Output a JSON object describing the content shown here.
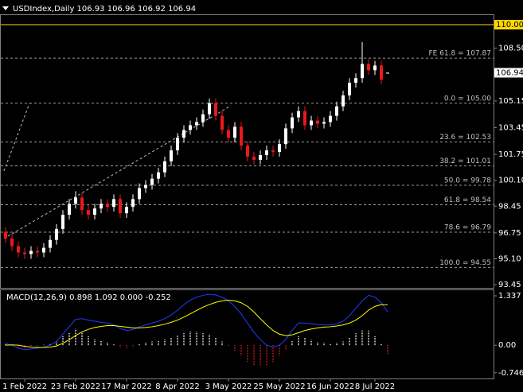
{
  "chart_data": [
    {
      "type": "candlestick",
      "title": "USDIndex,Daily  106.93 106.96 106.92 106.94",
      "categories": [
        null,
        null,
        null,
        "1 Feb 2022",
        null,
        null,
        null,
        null,
        null,
        null,
        null,
        "23 Feb 2022",
        null,
        null,
        null,
        null,
        null,
        null,
        null,
        "17 Mar 2022",
        null,
        null,
        null,
        null,
        null,
        null,
        null,
        "8 Apr 2022",
        null,
        null,
        null,
        null,
        null,
        null,
        null,
        "3 May 2022",
        null,
        null,
        null,
        null,
        null,
        null,
        null,
        "25 May 2022",
        null,
        null,
        null,
        null,
        null,
        null,
        null,
        "16 Jun 2022",
        null,
        null,
        null,
        null,
        null,
        null,
        "8 Jul 2022",
        null,
        null
      ],
      "open": [
        96.8,
        96.4,
        95.9,
        95.5,
        95.4,
        95.6,
        95.5,
        95.8,
        96.3,
        97.0,
        97.9,
        98.6,
        99.0,
        98.2,
        97.9,
        98.3,
        98.6,
        98.4,
        98.9,
        98.0,
        98.4,
        98.9,
        99.6,
        99.8,
        100.2,
        100.6,
        101.3,
        102.0,
        102.8,
        103.3,
        103.6,
        103.8,
        104.3,
        105.0,
        104.2,
        103.3,
        102.8,
        103.5,
        102.3,
        101.6,
        101.4,
        101.7,
        102.0,
        101.9,
        102.4,
        103.4,
        104.1,
        104.5,
        103.6,
        103.9,
        103.7,
        103.8,
        104.2,
        104.8,
        105.5,
        106.3,
        106.6,
        107.5,
        107.1,
        107.4,
        106.93
      ],
      "high": [
        97.1,
        96.7,
        96.2,
        95.8,
        95.9,
        95.9,
        96.1,
        96.6,
        97.3,
        98.2,
        98.9,
        99.4,
        99.3,
        98.5,
        98.6,
        98.9,
        98.9,
        99.2,
        99.2,
        98.7,
        99.2,
        99.9,
        100.1,
        100.5,
        100.9,
        101.6,
        102.3,
        103.1,
        103.6,
        103.9,
        104.1,
        104.6,
        105.3,
        105.3,
        104.5,
        103.6,
        103.8,
        103.8,
        102.6,
        101.9,
        102.0,
        102.3,
        102.3,
        102.7,
        103.7,
        104.4,
        104.8,
        104.8,
        104.2,
        104.2,
        104.1,
        104.5,
        105.1,
        105.8,
        106.6,
        106.9,
        108.9,
        107.8,
        107.7,
        107.7,
        106.96
      ],
      "low": [
        96.1,
        95.6,
        95.2,
        95.1,
        95.1,
        95.2,
        95.2,
        95.5,
        96.0,
        96.7,
        97.6,
        98.3,
        97.9,
        97.6,
        97.6,
        98.0,
        98.1,
        98.1,
        97.7,
        97.7,
        98.1,
        98.6,
        99.3,
        99.5,
        99.9,
        100.3,
        101.0,
        101.7,
        102.5,
        103.0,
        103.3,
        103.5,
        104.0,
        103.9,
        103.0,
        102.5,
        102.5,
        102.0,
        101.3,
        101.1,
        101.1,
        101.4,
        101.6,
        101.6,
        102.1,
        103.1,
        103.8,
        103.3,
        103.3,
        103.4,
        103.4,
        103.5,
        103.9,
        104.5,
        105.2,
        106.0,
        106.3,
        106.8,
        106.8,
        106.2,
        106.92
      ],
      "close": [
        96.4,
        95.9,
        95.5,
        95.4,
        95.6,
        95.5,
        95.8,
        96.3,
        97.0,
        97.9,
        98.6,
        99.0,
        98.2,
        97.9,
        98.3,
        98.6,
        98.4,
        98.9,
        98.0,
        98.4,
        98.9,
        99.6,
        99.8,
        100.2,
        100.6,
        101.3,
        102.0,
        102.8,
        103.3,
        103.6,
        103.8,
        104.3,
        105.0,
        104.2,
        103.3,
        102.8,
        103.5,
        102.3,
        101.6,
        101.4,
        101.7,
        102.0,
        101.9,
        102.4,
        103.4,
        104.1,
        104.5,
        103.6,
        103.9,
        103.7,
        103.8,
        104.2,
        104.8,
        105.5,
        106.3,
        106.6,
        107.5,
        107.1,
        107.4,
        106.5,
        106.94
      ],
      "up_color": "#ffffff",
      "down_color": "#e8191b",
      "ylim": [
        93.25,
        110.66
      ],
      "yticks": [
        {
          "value": 93.45,
          "label": "93.45"
        },
        {
          "value": 95.1,
          "label": "95.10"
        },
        {
          "value": 96.75,
          "label": "96.75"
        },
        {
          "value": 98.45,
          "label": "98.45"
        },
        {
          "value": 100.1,
          "label": "100.10"
        },
        {
          "value": 101.75,
          "label": "101.75"
        },
        {
          "value": 103.45,
          "label": "103.45"
        },
        {
          "value": 105.15,
          "label": "105.15"
        },
        {
          "value": 108.5,
          "label": "108.50"
        }
      ],
      "hline": {
        "value": 110,
        "label": "110.00",
        "color": "#ffd700"
      },
      "current_price": {
        "value": 106.94,
        "label": "106.94"
      },
      "levels": [
        {
          "value": 107.87,
          "label": "FE 61.8 = 107.87"
        },
        {
          "value": 105,
          "label": "0.0 = 105.00"
        },
        {
          "value": 102.53,
          "label": "23.6 = 102.53"
        },
        {
          "value": 101.01,
          "label": "38.2 = 101.01"
        },
        {
          "value": 99.78,
          "label": "50.0 = 99.78"
        },
        {
          "value": 98.54,
          "label": "61.8 = 98.54"
        },
        {
          "value": 96.79,
          "label": "78.6 = 96.79"
        },
        {
          "value": 94.55,
          "label": "100.0 = 94.55"
        }
      ],
      "grid": false
    },
    {
      "type": "macd",
      "title": "MACD(12,26,9) 0.898 1.092 0.000 -0.252",
      "histogram": [
        0.05,
        -0.01,
        -0.08,
        -0.09,
        -0.05,
        -0.02,
        0.01,
        0.05,
        0.12,
        0.25,
        0.35,
        0.44,
        0.36,
        0.25,
        0.17,
        0.11,
        0.07,
        0.02,
        -0.06,
        -0.09,
        -0.05,
        0.03,
        0.07,
        0.1,
        0.12,
        0.15,
        0.2,
        0.27,
        0.34,
        0.37,
        0.36,
        0.32,
        0.28,
        0.2,
        0.1,
        -0.02,
        -0.15,
        -0.3,
        -0.45,
        -0.55,
        -0.57,
        -0.55,
        -0.45,
        -0.3,
        -0.11,
        0.12,
        0.26,
        0.2,
        0.14,
        0.09,
        0.06,
        0.05,
        0.06,
        0.1,
        0.2,
        0.32,
        0.4,
        0.4,
        0.25,
        0.05,
        -0.252
      ],
      "main": [
        0.05,
        0.0,
        -0.08,
        -0.12,
        -0.1,
        -0.08,
        -0.05,
        0.0,
        0.1,
        0.3,
        0.5,
        0.7,
        0.72,
        0.68,
        0.65,
        0.62,
        0.6,
        0.55,
        0.45,
        0.4,
        0.42,
        0.5,
        0.55,
        0.6,
        0.65,
        0.72,
        0.82,
        0.95,
        1.1,
        1.22,
        1.3,
        1.35,
        1.38,
        1.36,
        1.3,
        1.2,
        1.05,
        0.85,
        0.6,
        0.35,
        0.15,
        0.0,
        -0.05,
        0.0,
        0.15,
        0.4,
        0.6,
        0.6,
        0.58,
        0.56,
        0.55,
        0.55,
        0.58,
        0.65,
        0.8,
        1.0,
        1.2,
        1.35,
        1.3,
        1.15,
        0.898
      ],
      "signal": [
        0.0,
        0.01,
        0.0,
        -0.03,
        -0.05,
        -0.06,
        -0.06,
        -0.05,
        -0.02,
        0.05,
        0.15,
        0.26,
        0.36,
        0.43,
        0.48,
        0.51,
        0.53,
        0.53,
        0.51,
        0.49,
        0.47,
        0.47,
        0.48,
        0.5,
        0.53,
        0.57,
        0.62,
        0.68,
        0.76,
        0.85,
        0.94,
        1.03,
        1.1,
        1.16,
        1.2,
        1.22,
        1.2,
        1.15,
        1.05,
        0.9,
        0.72,
        0.55,
        0.4,
        0.3,
        0.26,
        0.28,
        0.34,
        0.4,
        0.44,
        0.47,
        0.49,
        0.5,
        0.52,
        0.55,
        0.6,
        0.68,
        0.8,
        0.95,
        1.05,
        1.1,
        1.092
      ],
      "histogram_up_color": "#ffffff",
      "histogram_down_color": "#e8191b",
      "main_color": "#1e3cff",
      "signal_color": "#ffff00",
      "ylim": [
        -0.9,
        1.51
      ],
      "yticks": [
        {
          "value": 1.337,
          "label": "1.337"
        },
        {
          "value": 0,
          "label": "0.00"
        },
        {
          "value": -0.746,
          "label": "-0.746"
        }
      ]
    }
  ]
}
